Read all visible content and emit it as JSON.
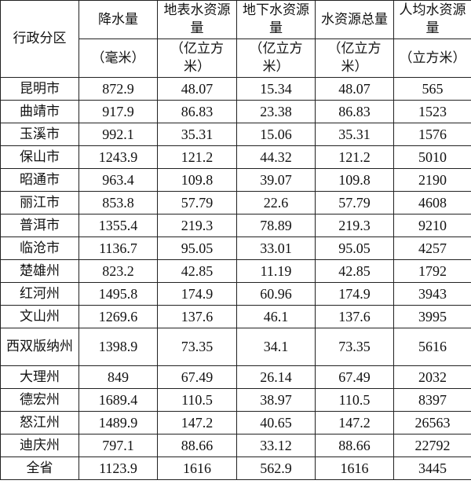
{
  "table": {
    "corner_header": "行政分区",
    "headers": [
      {
        "name": "降水量",
        "unit": "（毫米）"
      },
      {
        "name": "地表水资源量",
        "unit": "（亿立方米）"
      },
      {
        "name": "地下水资源量",
        "unit": "（亿立方米）"
      },
      {
        "name": "水资源总量",
        "unit": "（亿立方米）"
      },
      {
        "name": "人均水资源量",
        "unit": "（立方米）"
      }
    ],
    "rows": [
      {
        "region": "昆明市",
        "values": [
          "872.9",
          "48.07",
          "15.34",
          "48.07",
          "565"
        ]
      },
      {
        "region": "曲靖市",
        "values": [
          "917.9",
          "86.83",
          "23.38",
          "86.83",
          "1523"
        ]
      },
      {
        "region": "玉溪市",
        "values": [
          "992.1",
          "35.31",
          "15.06",
          "35.31",
          "1576"
        ]
      },
      {
        "region": "保山市",
        "values": [
          "1243.9",
          "121.2",
          "44.32",
          "121.2",
          "5010"
        ]
      },
      {
        "region": "昭通市",
        "values": [
          "963.4",
          "109.8",
          "39.07",
          "109.8",
          "2190"
        ]
      },
      {
        "region": "丽江市",
        "values": [
          "853.8",
          "57.79",
          "22.6",
          "57.79",
          "4608"
        ]
      },
      {
        "region": "普洱市",
        "values": [
          "1355.4",
          "219.3",
          "78.89",
          "219.3",
          "9210"
        ]
      },
      {
        "region": "临沧市",
        "values": [
          "1136.7",
          "95.05",
          "33.01",
          "95.05",
          "4257"
        ]
      },
      {
        "region": "楚雄州",
        "values": [
          "823.2",
          "42.85",
          "11.19",
          "42.85",
          "1792"
        ]
      },
      {
        "region": "红河州",
        "values": [
          "1495.8",
          "174.9",
          "60.96",
          "174.9",
          "3943"
        ]
      },
      {
        "region": "文山州",
        "values": [
          "1269.6",
          "137.6",
          "46.1",
          "137.6",
          "3995"
        ]
      },
      {
        "region": "西双版纳州",
        "values": [
          "1398.9",
          "73.35",
          "34.1",
          "73.35",
          "5616"
        ]
      },
      {
        "region": "大理州",
        "values": [
          "849",
          "67.49",
          "26.14",
          "67.49",
          "2032"
        ]
      },
      {
        "region": "德宏州",
        "values": [
          "1689.4",
          "110.5",
          "38.97",
          "110.5",
          "8397"
        ]
      },
      {
        "region": "怒江州",
        "values": [
          "1489.9",
          "147.2",
          "40.65",
          "147.2",
          "26563"
        ]
      },
      {
        "region": "迪庆州",
        "values": [
          "797.1",
          "88.66",
          "33.12",
          "88.66",
          "22792"
        ]
      },
      {
        "region": "全省",
        "values": [
          "1123.9",
          "1616",
          "562.9",
          "1616",
          "3445"
        ]
      }
    ]
  }
}
